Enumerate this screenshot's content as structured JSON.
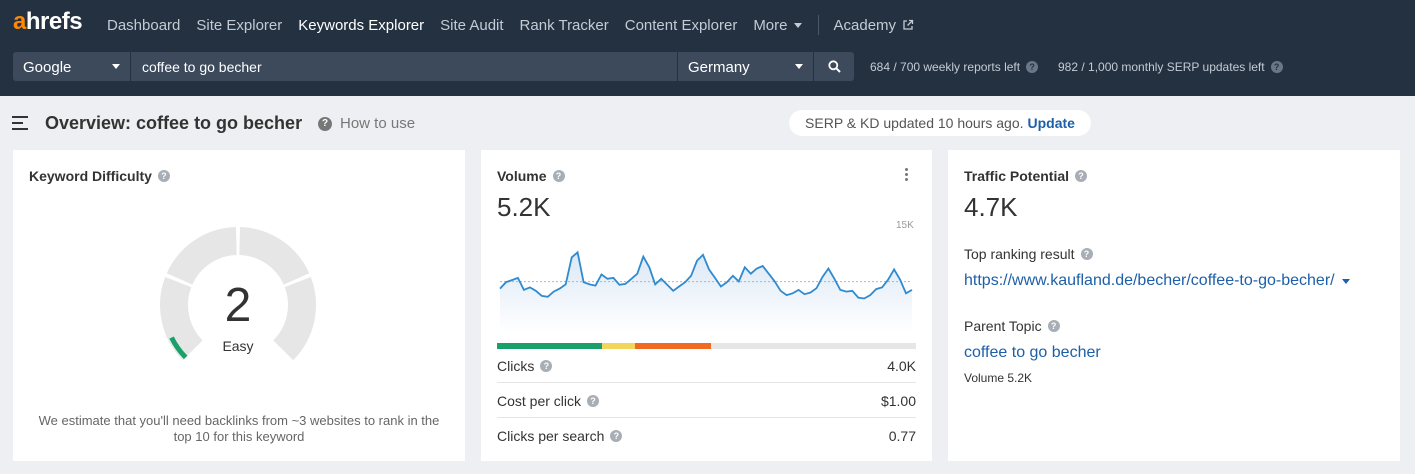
{
  "brand": {
    "logo_a": "a",
    "logo_rest": "hrefs",
    "accent": "#ff8800",
    "nav_bg": "#243141"
  },
  "nav": {
    "items": [
      "Dashboard",
      "Site Explorer",
      "Keywords Explorer",
      "Site Audit",
      "Rank Tracker",
      "Content Explorer",
      "More"
    ],
    "active": "Keywords Explorer",
    "academy": "Academy"
  },
  "search": {
    "engine": "Google",
    "keyword": "coffee to go becher",
    "country": "Germany",
    "weekly_quota": "684 / 700 weekly reports left",
    "monthly_quota": "982 / 1,000 monthly SERP updates left"
  },
  "overview": {
    "title": "Overview: coffee to go becher",
    "how_to_use": "How to use",
    "serp_status": "SERP & KD updated 10 hours ago.",
    "update": "Update"
  },
  "kd": {
    "title": "Keyword Difficulty",
    "value": "2",
    "score": 2,
    "label": "Easy",
    "note": "We estimate that you'll need backlinks from ~3 websites to rank in the top 10 for this keyword",
    "color": "#1aa16b"
  },
  "volume": {
    "title": "Volume",
    "value": "5.2K",
    "axis_max": "15K",
    "trend": [
      8.5,
      10,
      10.5,
      11,
      8.2,
      8.8,
      8,
      6.8,
      6.6,
      7.8,
      8.5,
      9.5,
      15.8,
      17,
      10,
      9.5,
      9.2,
      11.8,
      10.8,
      11,
      9.4,
      9.6,
      10.8,
      12,
      16,
      13.5,
      9.5,
      10.8,
      9.4,
      8,
      9,
      10,
      11.5,
      15,
      16.4,
      13,
      11,
      9,
      10,
      11.5,
      10.2,
      13.5,
      12,
      13.2,
      13.8,
      12,
      10.2,
      8,
      7,
      7.4,
      8.2,
      7.2,
      7.6,
      8.6,
      11.2,
      13.2,
      10.8,
      8.2,
      7.8,
      8,
      6.4,
      6.2,
      7,
      8.4,
      8.8,
      10.6,
      13,
      10.6,
      7.4,
      8.2
    ],
    "clicks_split": [
      {
        "color": "#1aa16b",
        "pct": 25
      },
      {
        "color": "#f3d55b",
        "pct": 8
      },
      {
        "color": "#f26a21",
        "pct": 18
      }
    ],
    "metrics": [
      {
        "label": "Clicks",
        "value": "4.0K"
      },
      {
        "label": "Cost per click",
        "value": "$1.00"
      },
      {
        "label": "Clicks per search",
        "value": "0.77"
      }
    ]
  },
  "traffic": {
    "title": "Traffic Potential",
    "value": "4.7K",
    "top_result_label": "Top ranking result",
    "top_result_url": "https://www.kaufland.de/becher/coffee-to-go-becher/",
    "parent_topic_label": "Parent Topic",
    "parent_topic": "coffee to go becher",
    "parent_volume": "Volume 5.2K"
  }
}
